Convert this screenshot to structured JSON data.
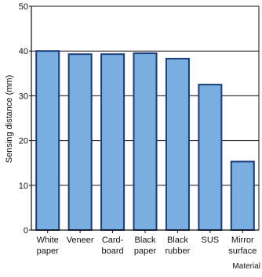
{
  "chart_data": {
    "type": "bar",
    "title": "",
    "ylabel": "Sensing distance (mm)",
    "xlabel": "Material",
    "ylim": [
      0,
      50
    ],
    "yticks": [
      0,
      10,
      20,
      30,
      40,
      50
    ],
    "grid": true,
    "categories": [
      [
        "White",
        "paper"
      ],
      [
        "Veneer"
      ],
      [
        "Card-",
        "board"
      ],
      [
        "Black",
        "paper"
      ],
      [
        "Black",
        "rubber"
      ],
      [
        "SUS"
      ],
      [
        "Mirror",
        "surface"
      ]
    ],
    "values": [
      40,
      39.3,
      39.3,
      39.5,
      38.3,
      32.5,
      15.3
    ]
  },
  "colors": {
    "bar_fill": "#7aaee0",
    "bar_stroke": "#1a3d7a",
    "axis": "#111111",
    "grid": "#111111"
  }
}
